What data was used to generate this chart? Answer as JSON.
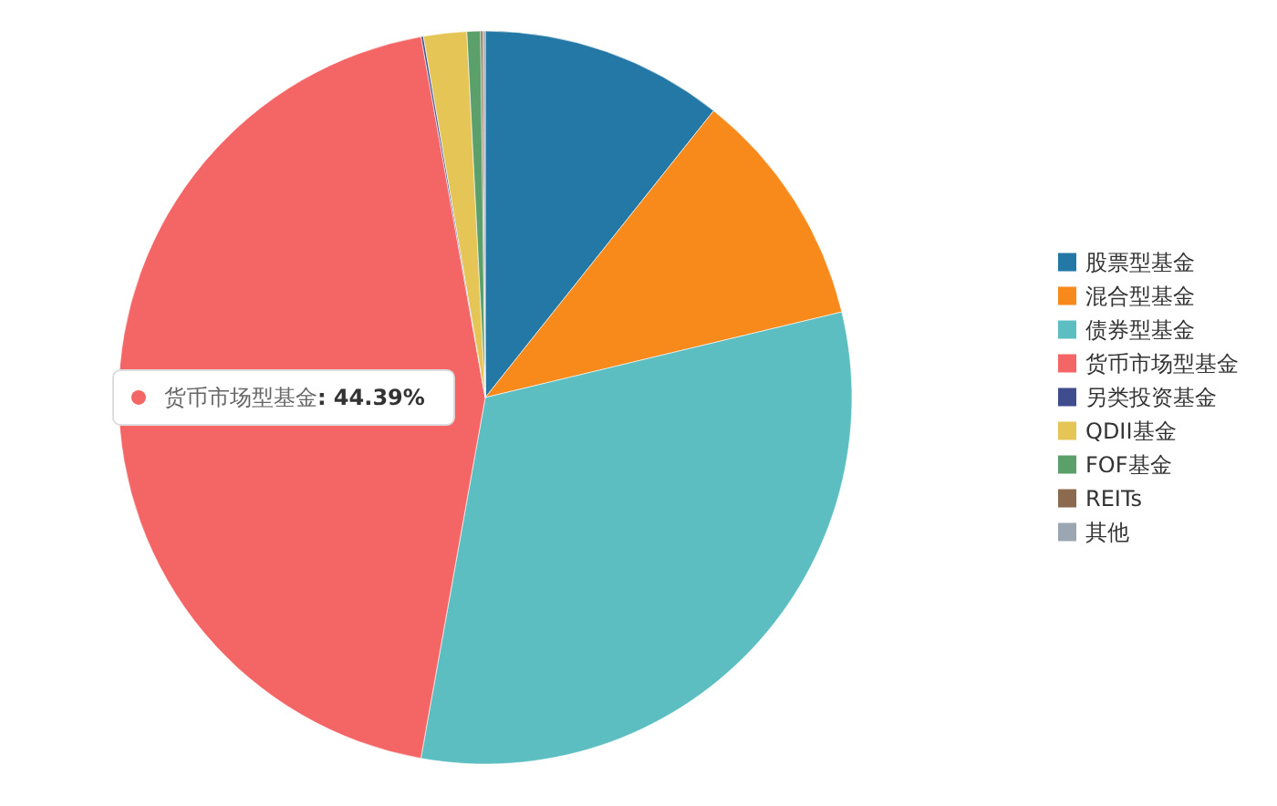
{
  "chart_data": {
    "type": "pie",
    "legend": "right",
    "categories": [
      "股票型基金",
      "混合型基金",
      "债券型基金",
      "货币市场型基金",
      "另类投资基金",
      "QDII基金",
      "FOF基金",
      "REITs",
      "其他"
    ],
    "values": [
      10.7,
      10.55,
      31.56,
      44.39,
      0.1,
      1.9,
      0.6,
      0.1,
      0.1
    ],
    "value_labels": [
      null,
      null,
      null,
      ": 44.39%",
      null,
      null,
      null,
      null,
      null
    ],
    "colors": [
      "#2378a5",
      "#f78a1b",
      "#5dbec1",
      "#f46566",
      "#3f4d8f",
      "#e6c557",
      "#5ba06b",
      "#8b6a4f",
      "#9aa7b2"
    ]
  }
}
